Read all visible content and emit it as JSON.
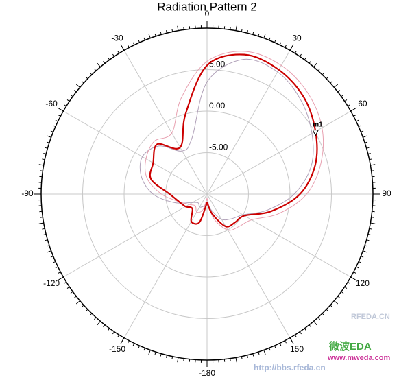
{
  "chart_data": {
    "type": "polar",
    "title": "Radiation Pattern 2",
    "theta": [
      -180,
      -165,
      -150,
      -135,
      -120,
      -105,
      -90,
      -75,
      -60,
      -45,
      -30,
      -15,
      0,
      15,
      30,
      45,
      60,
      75,
      90,
      105,
      120,
      135,
      150,
      165,
      180
    ],
    "series": [
      {
        "color": "#cc0000",
        "width": 2.2,
        "values": [
          -9,
          -6.5,
          -6.2,
          -7.5,
          -7,
          -6.5,
          -5.5,
          -3,
          -2.5,
          -1.5,
          -3.5,
          0,
          5.5,
          7.4,
          7.3,
          6.5,
          5.1,
          3.5,
          1.2,
          -2,
          -4.8,
          -5.2,
          -5.5,
          -7.5,
          -9
        ]
      },
      {
        "color": "#e8a0b0",
        "width": 1,
        "values": [
          -9.5,
          -8,
          -7.5,
          -8,
          -7.5,
          -6.5,
          -4.5,
          -2.5,
          -1.5,
          -1,
          -1.5,
          2,
          6,
          7.8,
          7.9,
          7.2,
          6,
          4.2,
          2,
          -1,
          -3.8,
          -4.5,
          -5,
          -7,
          -9.5
        ]
      },
      {
        "color": "#b0a0b8",
        "width": 1,
        "values": [
          -9,
          -8.5,
          -8.2,
          -8.5,
          -8,
          -6,
          -3.5,
          -1.8,
          -1,
          -1.8,
          -4,
          -3,
          3.5,
          6.8,
          7,
          6,
          4.6,
          3,
          0.5,
          -2.5,
          -5,
          -5.8,
          -6.5,
          -8,
          -9
        ]
      }
    ],
    "rlim": [
      -10,
      10
    ],
    "rticks": [
      {
        "value": -5,
        "label": "-5.00"
      },
      {
        "value": 0,
        "label": "0.00"
      },
      {
        "value": 5,
        "label": "5.00"
      }
    ],
    "thetaticks": [
      0,
      30,
      60,
      90,
      120,
      150,
      -180,
      -150,
      -120,
      -90,
      -60,
      -30
    ],
    "grid": true,
    "markers": [
      {
        "label": "m1",
        "theta": 60,
        "value": 5.1
      }
    ],
    "watermarks": [
      "RFEDA.CN",
      "微波EDA",
      "www.mweda.com",
      "http://bbs.rfeda.cn"
    ]
  }
}
